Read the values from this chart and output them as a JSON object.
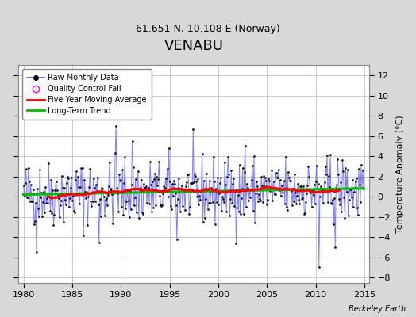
{
  "title": "VENABU",
  "subtitle": "61.651 N, 10.108 E (Norway)",
  "ylabel": "Temperature Anomaly (°C)",
  "credit": "Berkeley Earth",
  "xlim": [
    1979.5,
    2015.5
  ],
  "ylim": [
    -8.5,
    13
  ],
  "yticks": [
    -8,
    -6,
    -4,
    -2,
    0,
    2,
    4,
    6,
    8,
    10,
    12
  ],
  "xticks": [
    1980,
    1985,
    1990,
    1995,
    2000,
    2005,
    2010,
    2015
  ],
  "bg_color": "#d8d8d8",
  "plot_bg_color": "#ffffff",
  "grid_color": "#c0c0c0",
  "line_color": "#6666ff",
  "dot_color": "#000000",
  "moving_avg_color": "#ff0000",
  "trend_color": "#00bb00",
  "qc_color": "#ff00ff",
  "title_fontsize": 13,
  "subtitle_fontsize": 9,
  "tick_fontsize": 8,
  "ylabel_fontsize": 8,
  "seed": 42
}
